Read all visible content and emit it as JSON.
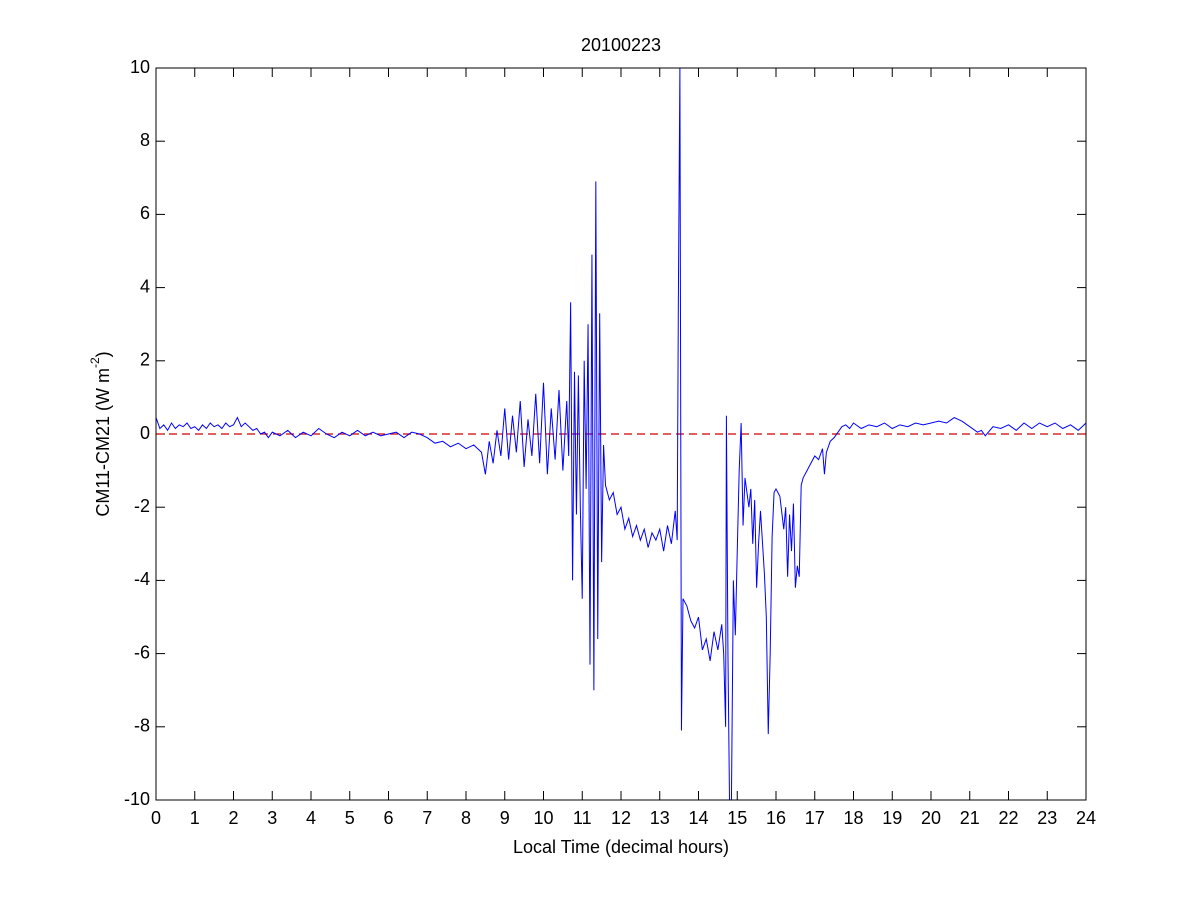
{
  "chart_data": {
    "type": "line",
    "title": "20100223",
    "xlabel": "Local Time (decimal hours)",
    "ylabel_parts": [
      "CM11-CM21 (W m",
      "-2",
      ")"
    ],
    "xlim": [
      0,
      24
    ],
    "ylim": [
      -10,
      10
    ],
    "xticks": [
      0,
      1,
      2,
      3,
      4,
      5,
      6,
      7,
      8,
      9,
      10,
      11,
      12,
      13,
      14,
      15,
      16,
      17,
      18,
      19,
      20,
      21,
      22,
      23,
      24
    ],
    "yticks": [
      -10,
      -8,
      -6,
      -4,
      -2,
      0,
      2,
      4,
      6,
      8,
      10
    ],
    "reference_line": {
      "y": 0,
      "color": "#d00000"
    },
    "series": [
      {
        "color": "#0000ff",
        "x": [
          0,
          0.1,
          0.2,
          0.3,
          0.4,
          0.5,
          0.6,
          0.7,
          0.8,
          0.9,
          1.0,
          1.1,
          1.2,
          1.3,
          1.4,
          1.5,
          1.6,
          1.7,
          1.8,
          1.9,
          2.0,
          2.1,
          2.2,
          2.3,
          2.4,
          2.5,
          2.6,
          2.7,
          2.8,
          2.9,
          3.0,
          3.2,
          3.4,
          3.6,
          3.8,
          4.0,
          4.2,
          4.4,
          4.6,
          4.8,
          5.0,
          5.2,
          5.4,
          5.6,
          5.8,
          6.0,
          6.2,
          6.4,
          6.6,
          6.8,
          7.0,
          7.2,
          7.4,
          7.6,
          7.8,
          8.0,
          8.2,
          8.4,
          8.5,
          8.6,
          8.7,
          8.8,
          8.9,
          9.0,
          9.1,
          9.2,
          9.3,
          9.4,
          9.5,
          9.6,
          9.7,
          9.8,
          9.9,
          10.0,
          10.1,
          10.2,
          10.3,
          10.4,
          10.5,
          10.6,
          10.65,
          10.7,
          10.75,
          10.8,
          10.85,
          10.9,
          10.95,
          11.0,
          11.05,
          11.1,
          11.15,
          11.2,
          11.25,
          11.3,
          11.35,
          11.4,
          11.45,
          11.5,
          11.55,
          11.6,
          11.7,
          11.8,
          11.9,
          12.0,
          12.1,
          12.2,
          12.3,
          12.4,
          12.5,
          12.6,
          12.7,
          12.8,
          12.9,
          13.0,
          13.1,
          13.2,
          13.3,
          13.4,
          13.45,
          13.48,
          13.52,
          13.56,
          13.6,
          13.7,
          13.8,
          13.9,
          14.0,
          14.1,
          14.2,
          14.3,
          14.4,
          14.5,
          14.6,
          14.65,
          14.7,
          14.72,
          14.76,
          14.8,
          14.85,
          14.9,
          14.95,
          15.0,
          15.05,
          15.1,
          15.15,
          15.2,
          15.3,
          15.35,
          15.4,
          15.45,
          15.5,
          15.55,
          15.6,
          15.7,
          15.75,
          15.8,
          15.85,
          15.9,
          15.95,
          16.0,
          16.1,
          16.2,
          16.25,
          16.3,
          16.35,
          16.4,
          16.45,
          16.5,
          16.55,
          16.6,
          16.65,
          16.7,
          16.8,
          16.9,
          17.0,
          17.1,
          17.2,
          17.25,
          17.3,
          17.4,
          17.5,
          17.6,
          17.7,
          17.8,
          17.9,
          18.0,
          18.2,
          18.4,
          18.6,
          18.8,
          19.0,
          19.2,
          19.4,
          19.6,
          19.8,
          20.0,
          20.2,
          20.4,
          20.6,
          20.8,
          21.0,
          21.2,
          21.3,
          21.4,
          21.6,
          21.8,
          22.0,
          22.2,
          22.4,
          22.6,
          22.8,
          23.0,
          23.2,
          23.4,
          23.6,
          23.8,
          24.0
        ],
        "values": [
          0.45,
          0.15,
          0.25,
          0.1,
          0.3,
          0.15,
          0.25,
          0.2,
          0.3,
          0.15,
          0.2,
          0.1,
          0.25,
          0.15,
          0.3,
          0.2,
          0.25,
          0.15,
          0.3,
          0.2,
          0.25,
          0.45,
          0.2,
          0.3,
          0.2,
          0.1,
          0.15,
          0.0,
          0.05,
          -0.1,
          0.05,
          -0.05,
          0.1,
          -0.1,
          0.05,
          -0.05,
          0.15,
          0.0,
          -0.1,
          0.05,
          -0.05,
          0.1,
          -0.05,
          0.05,
          -0.05,
          0.0,
          0.05,
          -0.1,
          0.05,
          0.0,
          -0.1,
          -0.25,
          -0.2,
          -0.35,
          -0.25,
          -0.4,
          -0.3,
          -0.5,
          -1.1,
          -0.2,
          -0.8,
          0.1,
          -0.6,
          0.7,
          -0.7,
          0.5,
          -0.5,
          0.9,
          -0.9,
          0.4,
          -0.6,
          1.1,
          -0.8,
          1.4,
          -1.1,
          0.7,
          -0.7,
          1.2,
          -1.0,
          0.9,
          -0.6,
          3.6,
          -4.0,
          1.7,
          -2.2,
          1.6,
          -2.0,
          -4.5,
          2.0,
          -1.5,
          3.0,
          -6.3,
          4.9,
          -7.0,
          6.9,
          -5.6,
          3.3,
          -3.5,
          -0.3,
          -1.4,
          -1.8,
          -1.6,
          -2.2,
          -2.0,
          -2.6,
          -2.3,
          -2.8,
          -2.5,
          -2.9,
          -2.6,
          -3.1,
          -2.7,
          -2.9,
          -2.6,
          -3.2,
          -2.5,
          -3.0,
          -2.1,
          -2.9,
          3.6,
          10,
          -8.1,
          -4.5,
          -4.7,
          -5.1,
          -5.3,
          -5.0,
          -5.9,
          -5.6,
          -6.2,
          -5.4,
          -5.9,
          -5.2,
          -6.0,
          -8.0,
          0.5,
          -6.0,
          -10,
          -10,
          -4.0,
          -5.5,
          -3.2,
          -1.0,
          0.3,
          -2.5,
          -1.2,
          -2.0,
          -1.5,
          -3.0,
          -1.8,
          -4.2,
          -3.0,
          -2.1,
          -3.8,
          -5.0,
          -8.2,
          -6.0,
          -2.8,
          -1.6,
          -1.5,
          -1.7,
          -2.6,
          -2.0,
          -3.9,
          -2.2,
          -3.2,
          -1.9,
          -4.2,
          -3.6,
          -3.9,
          -1.4,
          -1.2,
          -1.0,
          -0.8,
          -0.6,
          -0.7,
          -0.4,
          -1.1,
          -0.5,
          -0.2,
          -0.1,
          0.05,
          0.2,
          0.25,
          0.15,
          0.3,
          0.15,
          0.25,
          0.2,
          0.3,
          0.15,
          0.25,
          0.2,
          0.3,
          0.25,
          0.3,
          0.35,
          0.3,
          0.45,
          0.35,
          0.2,
          0.05,
          0.1,
          -0.05,
          0.2,
          0.15,
          0.25,
          0.1,
          0.3,
          0.15,
          0.3,
          0.2,
          0.3,
          0.15,
          0.25,
          0.1,
          0.3
        ]
      }
    ]
  }
}
